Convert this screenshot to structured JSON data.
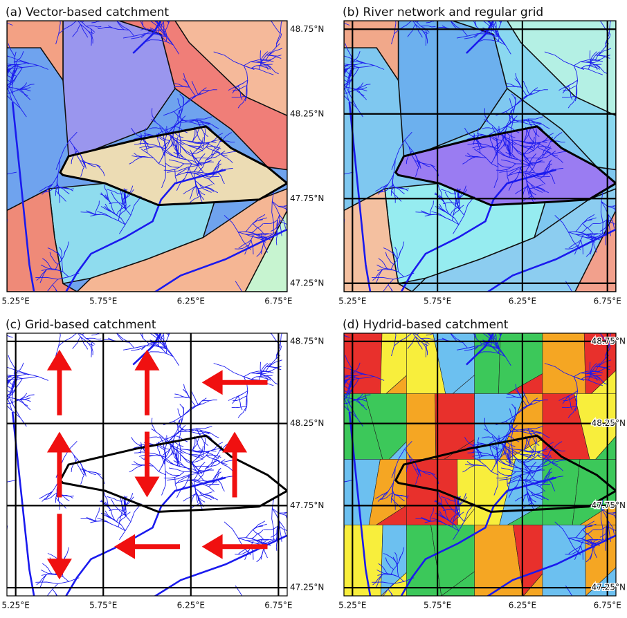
{
  "chart_data": [
    {
      "type": "map",
      "title": "(a) Vector-based catchment",
      "xlim": [
        5.2,
        6.8
      ],
      "ylim": [
        47.2,
        48.8
      ],
      "xticks": [
        {
          "value": 5.25,
          "label": "5.25°E"
        },
        {
          "value": 5.75,
          "label": "5.75°E"
        },
        {
          "value": 6.25,
          "label": "6.25°E"
        },
        {
          "value": 6.75,
          "label": "6.75°E"
        }
      ],
      "yticks": [
        {
          "value": 47.25,
          "label": "47.25°N"
        },
        {
          "value": 47.75,
          "label": "47.75°N"
        },
        {
          "value": 48.25,
          "label": "48.25°N"
        },
        {
          "value": 48.75,
          "label": "48.75°N"
        }
      ],
      "grid": false
    },
    {
      "type": "map",
      "title": "(b) River network and regular grid",
      "xlim": [
        5.2,
        6.8
      ],
      "ylim": [
        47.2,
        48.8
      ],
      "xticks": [
        {
          "value": 5.25,
          "label": "5.25°E"
        },
        {
          "value": 5.75,
          "label": "5.75°E"
        },
        {
          "value": 6.25,
          "label": "6.25°E"
        },
        {
          "value": 6.75,
          "label": "6.75°E"
        }
      ],
      "grid": true
    },
    {
      "type": "map",
      "title": "(c) Grid-based catchment",
      "xlim": [
        5.2,
        6.8
      ],
      "ylim": [
        47.2,
        48.8
      ],
      "xticks": [
        {
          "value": 5.25,
          "label": "5.25°E"
        },
        {
          "value": 5.75,
          "label": "5.75°E"
        },
        {
          "value": 6.25,
          "label": "6.25°E"
        },
        {
          "value": 6.75,
          "label": "6.75°E"
        }
      ],
      "yticks": [
        {
          "value": 47.25,
          "label": "47.25°N"
        },
        {
          "value": 47.75,
          "label": "47.75°N"
        },
        {
          "value": 48.25,
          "label": "48.25°N"
        },
        {
          "value": 48.75,
          "label": "48.75°N"
        }
      ],
      "grid": true
    },
    {
      "type": "map",
      "title": "(d) Hydrid-based catchment",
      "xlim": [
        5.2,
        6.8
      ],
      "ylim": [
        47.2,
        48.8
      ],
      "xticks": [
        {
          "value": 5.25,
          "label": "5.25°E"
        },
        {
          "value": 5.75,
          "label": "5.75°E"
        },
        {
          "value": 6.25,
          "label": "6.25°E"
        },
        {
          "value": 6.75,
          "label": "6.75°E"
        }
      ],
      "yticks": [
        {
          "value": 47.25,
          "label": "47.25°N"
        },
        {
          "value": 47.75,
          "label": "47.75°N"
        },
        {
          "value": 48.25,
          "label": "48.25°N"
        },
        {
          "value": 48.75,
          "label": "48.75°N"
        }
      ],
      "grid": true
    }
  ]
}
